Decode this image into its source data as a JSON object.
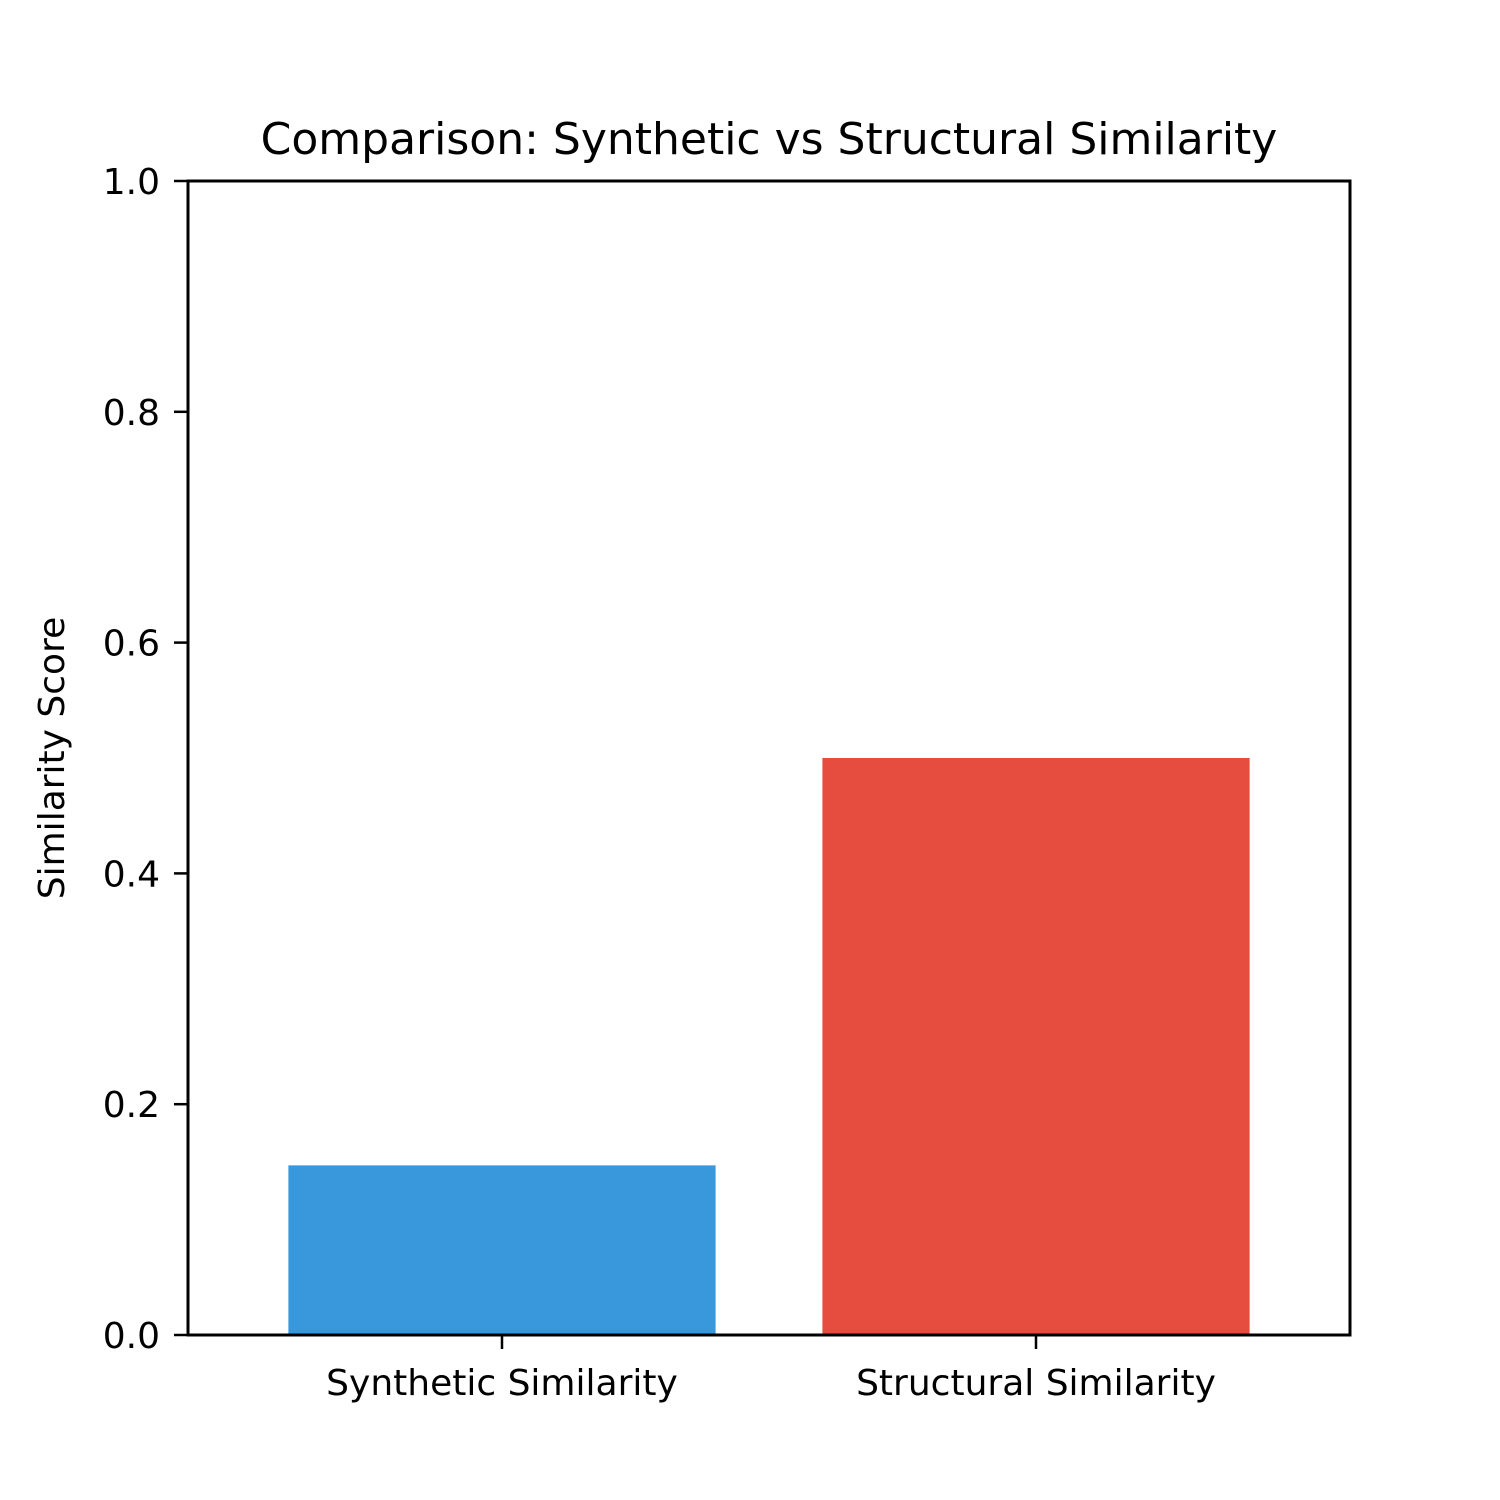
{
  "chart_data": {
    "type": "bar",
    "title": "Comparison: Synthetic vs Structural Similarity",
    "xlabel": "",
    "ylabel": "Similarity Score",
    "categories": [
      "Synthetic Similarity",
      "Structural Similarity"
    ],
    "values": [
      0.147,
      0.5
    ],
    "colors": [
      "#3898db",
      "#e74d3f"
    ],
    "ylim": [
      0.0,
      1.0
    ],
    "yticks": [
      "0.0",
      "0.2",
      "0.4",
      "0.6",
      "0.8",
      "1.0"
    ],
    "grid": false,
    "legend": "none"
  }
}
